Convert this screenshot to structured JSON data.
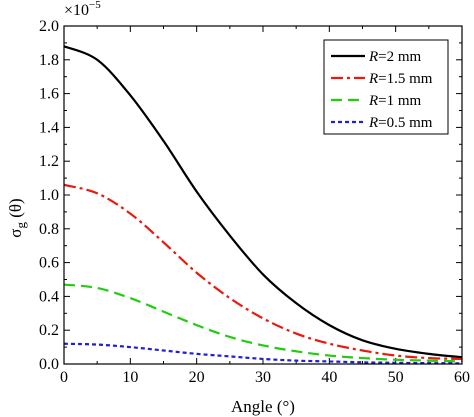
{
  "chart_data": {
    "type": "line",
    "title": "",
    "xlabel": "Angle (°)",
    "ylabel_main": "σ",
    "ylabel_sub": "g",
    "ylabel_tail": " (θ)",
    "multiplier_base": "×10",
    "multiplier_exp": "−5",
    "xlim": [
      0,
      60
    ],
    "ylim": [
      0,
      2.0
    ],
    "xticks": [
      0,
      10,
      20,
      30,
      40,
      50,
      60
    ],
    "yticks": [
      0.0,
      0.2,
      0.4,
      0.6,
      0.8,
      1.0,
      1.2,
      1.4,
      1.6,
      1.8,
      2.0
    ],
    "xtick_labels": [
      "0",
      "10",
      "20",
      "30",
      "40",
      "50",
      "60"
    ],
    "ytick_labels": [
      "0.0",
      "0.2",
      "0.4",
      "0.6",
      "0.8",
      "1.0",
      "1.2",
      "1.4",
      "1.6",
      "1.8",
      "2.0"
    ],
    "grid": false,
    "legend_position": "top-right",
    "x": [
      0,
      5,
      10,
      15,
      20,
      25,
      30,
      35,
      40,
      45,
      50,
      55,
      60
    ],
    "series": [
      {
        "name_italic": "R",
        "name_rest": "=2 mm",
        "color": "#000000",
        "dash": "solid",
        "values": [
          1.88,
          1.8,
          1.59,
          1.32,
          1.02,
          0.76,
          0.53,
          0.36,
          0.23,
          0.14,
          0.09,
          0.06,
          0.04
        ]
      },
      {
        "name_italic": "R",
        "name_rest": "=1.5 mm",
        "color": "#e8190f",
        "dash": "dashdot",
        "values": [
          1.06,
          1.01,
          0.89,
          0.72,
          0.54,
          0.39,
          0.27,
          0.18,
          0.12,
          0.08,
          0.05,
          0.035,
          0.03
        ]
      },
      {
        "name_italic": "R",
        "name_rest": "=1 mm",
        "color": "#22cc11",
        "dash": "dash",
        "values": [
          0.47,
          0.45,
          0.39,
          0.31,
          0.23,
          0.16,
          0.11,
          0.075,
          0.05,
          0.035,
          0.025,
          0.02,
          0.015
        ]
      },
      {
        "name_italic": "R",
        "name_rest": "=0.5 mm",
        "color": "#1f1fd6",
        "dash": "dot",
        "values": [
          0.12,
          0.115,
          0.1,
          0.08,
          0.06,
          0.045,
          0.03,
          0.02,
          0.015,
          0.01,
          0.007,
          0.005,
          0.004
        ]
      }
    ]
  }
}
